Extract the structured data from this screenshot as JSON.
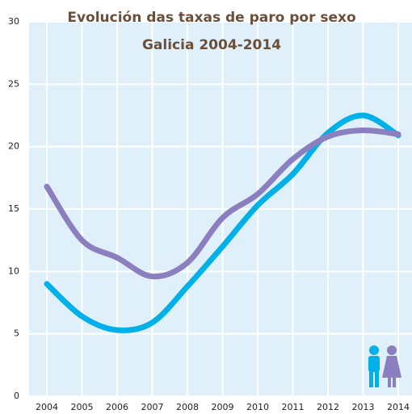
{
  "chart_data": {
    "type": "line",
    "title": "Evolución das taxas de paro por sexo",
    "subtitle": "Galicia 2004-2014",
    "categories": [
      "2004",
      "2005",
      "2006",
      "2007",
      "2008",
      "2009",
      "2010",
      "2011",
      "2012",
      "2013",
      "2014"
    ],
    "series": [
      {
        "color": "#00b0e8",
        "values": [
          9.0,
          6.4,
          5.3,
          5.9,
          8.8,
          12.0,
          15.3,
          17.8,
          21.1,
          22.5,
          20.9
        ]
      },
      {
        "color": "#8b7fc0",
        "values": [
          16.8,
          12.5,
          11.1,
          9.6,
          10.7,
          14.3,
          16.2,
          19.0,
          20.8,
          21.3,
          21.0
        ]
      }
    ],
    "ylim": [
      0,
      30
    ],
    "yticks": [
      0,
      5,
      10,
      15,
      20,
      25,
      30
    ],
    "grid": true
  }
}
